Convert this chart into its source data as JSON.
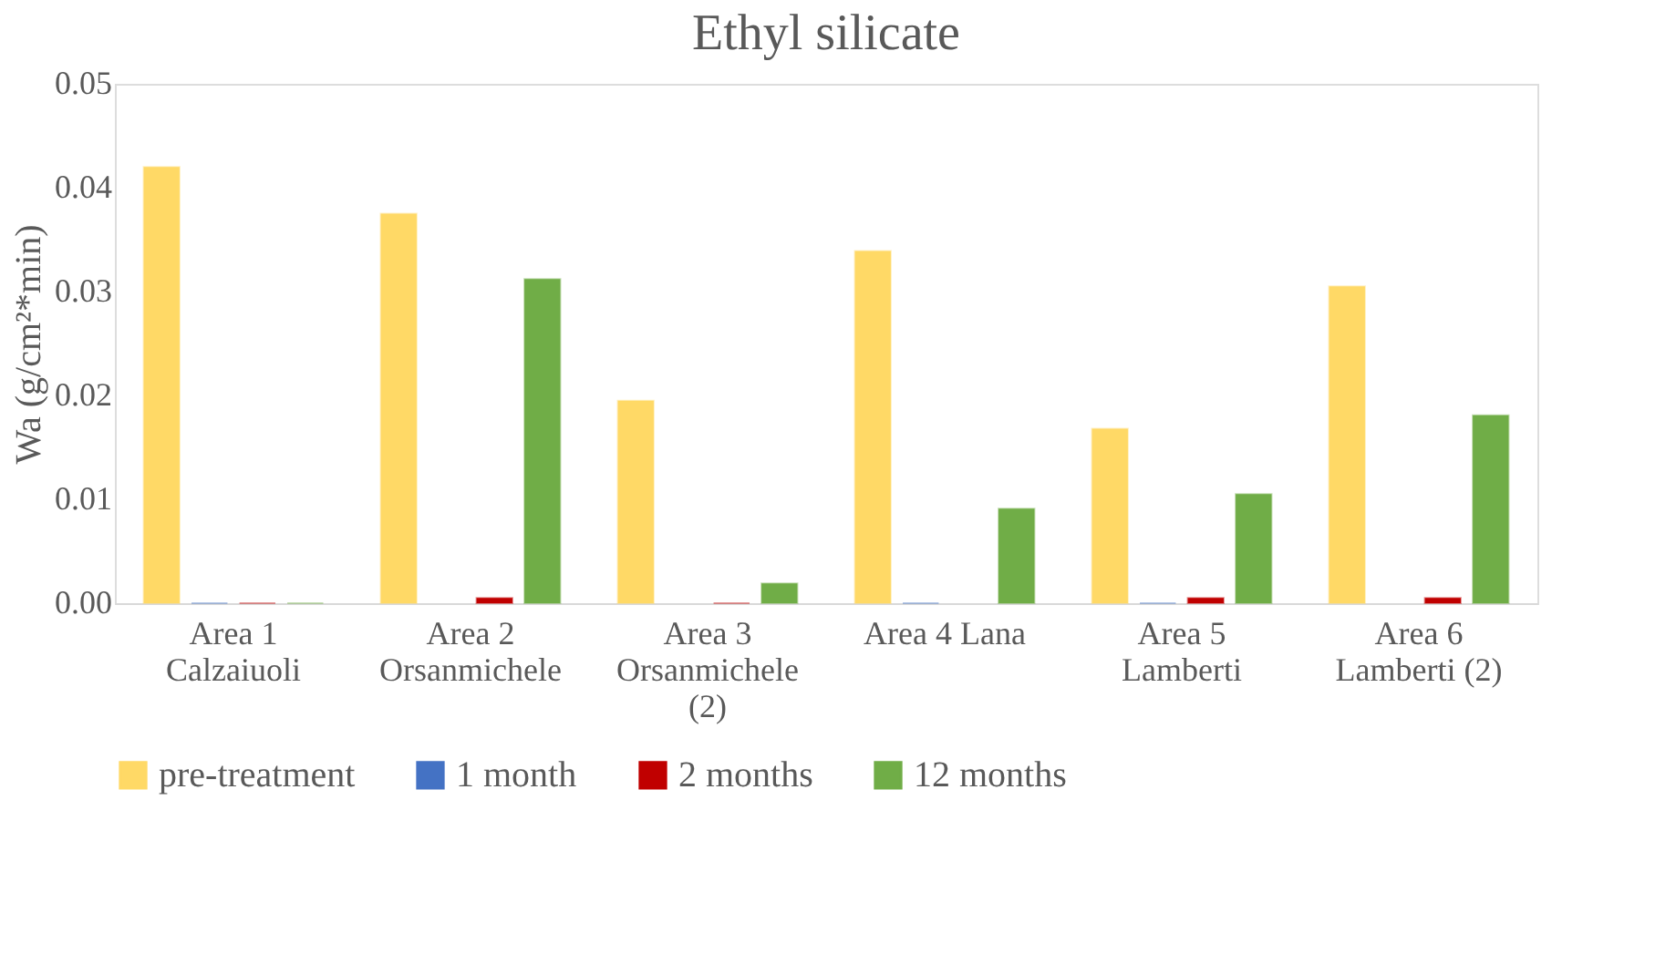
{
  "chart_data": {
    "type": "bar",
    "title": "Ethyl silicate",
    "ylabel": "Wa (g/cm²*min)",
    "categories": [
      "Area 1\nCalzaiuoli",
      "Area 2\nOrsanmichele",
      "Area 3\nOrsanmichele\n(2)",
      "Area 4 Lana",
      "Area 5\nLamberti",
      "Area 6\nLamberti (2)"
    ],
    "series": [
      {
        "name": "pre-treatment",
        "color": "#ffd966",
        "values": [
          0.042,
          0.0375,
          0.0195,
          0.0339,
          0.0168,
          0.0305
        ]
      },
      {
        "name": "1 month",
        "color": "#4472c4",
        "values": [
          0,
          null,
          null,
          0,
          0,
          null
        ]
      },
      {
        "name": "2 months",
        "color": "#c00000",
        "values": [
          0,
          0.0005,
          0,
          null,
          0.0005,
          0.0005
        ]
      },
      {
        "name": "12 months",
        "color": "#70ad47",
        "values": [
          0,
          0.0312,
          0.0019,
          0.0091,
          0.0105,
          0.0181
        ]
      }
    ],
    "ylim": [
      0,
      0.05
    ],
    "yticks": [
      {
        "value": 0,
        "label": "0.00"
      },
      {
        "value": 0.01,
        "label": "0.01"
      },
      {
        "value": 0.02,
        "label": "0.02"
      },
      {
        "value": 0.03,
        "label": "0.03"
      },
      {
        "value": 0.04,
        "label": "0.04"
      },
      {
        "value": 0.05,
        "label": "0.05"
      }
    ],
    "grid": false,
    "legend": "bottom"
  }
}
